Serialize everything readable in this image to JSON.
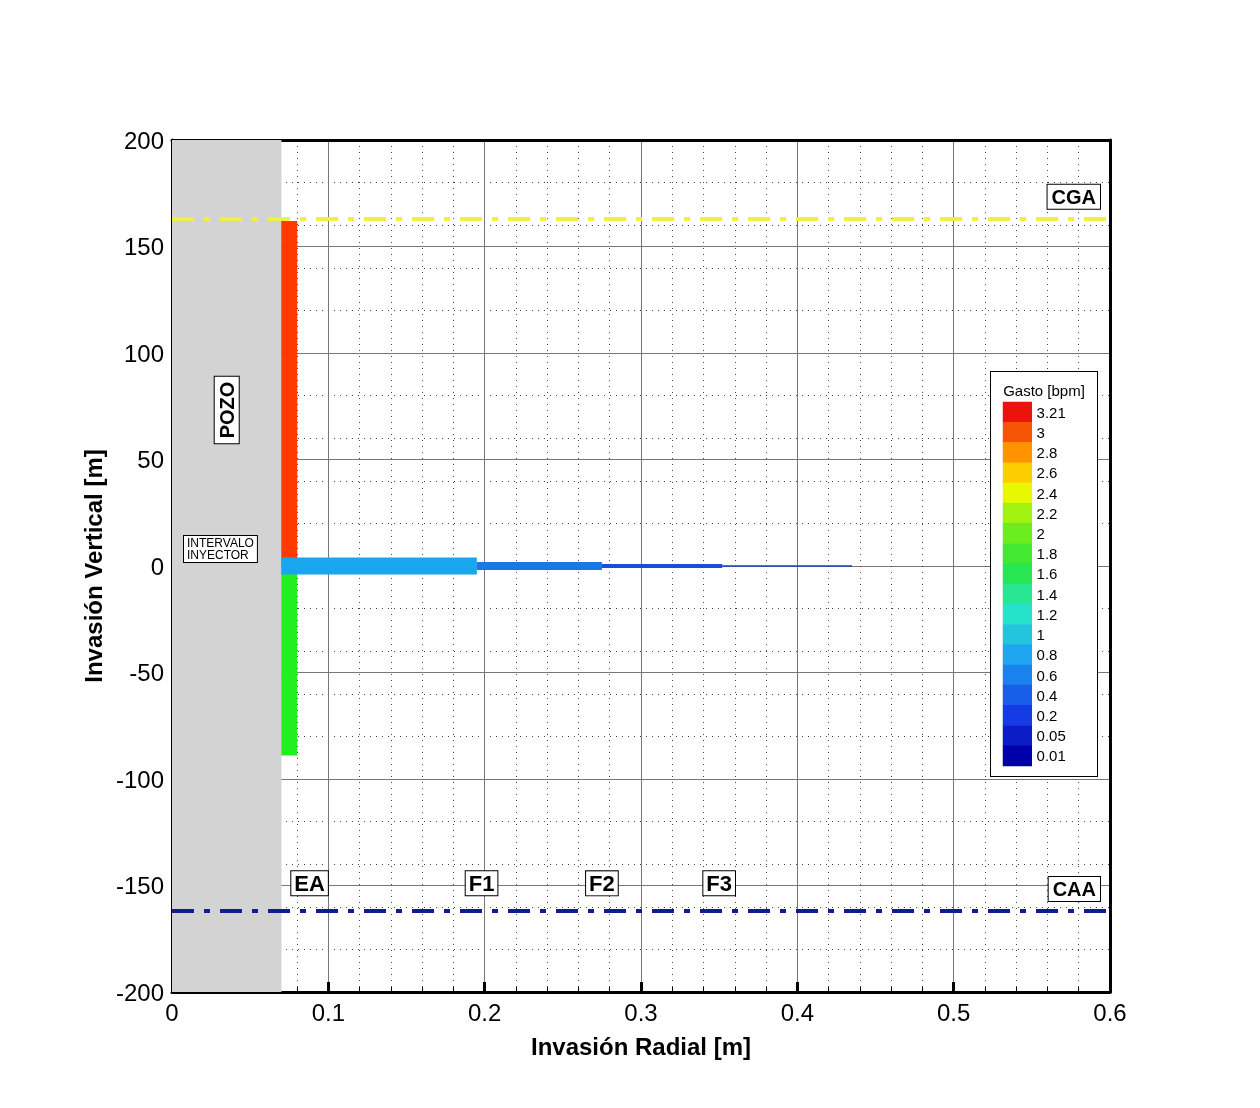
{
  "chart_data": [
    {
      "type": "line",
      "xlabel": "Invasión Radial [m]",
      "ylabel": "Invasión Vertical [m]",
      "xlim": [
        0,
        0.6
      ],
      "xticks": [
        0,
        0.1,
        0.2,
        0.3,
        0.4,
        0.5,
        0.6
      ],
      "ylim": [
        -200,
        200
      ],
      "yticks": [
        -200,
        -150,
        -100,
        -50,
        0,
        50,
        100,
        150,
        200
      ],
      "grid": true,
      "marker": "none",
      "line_style": "solid",
      "series": [
        {
          "color": "#ff3a00",
          "x": [
            0.075,
            0.075
          ],
          "values": [
            0,
            162
          ]
        },
        {
          "color": "#22ee22",
          "x": [
            0.075,
            0.075
          ],
          "values": [
            0,
            -89
          ]
        },
        {
          "color": "#1aa6ee",
          "x": [
            0.07,
            0.195
          ],
          "values": [
            0,
            0
          ]
        },
        {
          "color": "#1a78e6",
          "x": [
            0.195,
            0.275
          ],
          "values": [
            0,
            0
          ]
        },
        {
          "color": "#1a4ed6",
          "x": [
            0.275,
            0.352
          ],
          "values": [
            0,
            0
          ]
        },
        {
          "color": "#1a3cc0",
          "x": [
            0.352,
            0.435
          ],
          "values": [
            0,
            0
          ]
        }
      ],
      "bands": [
        {
          "axis": "x",
          "from": 0,
          "to": 0.07,
          "label": "POZO",
          "color": "#d3d3d3"
        }
      ],
      "ref_lines": [
        {
          "axis": "y",
          "value": 163,
          "label": "CGA",
          "color": "#f0f040",
          "line_style": "dashdot"
        },
        {
          "axis": "y",
          "value": -162,
          "label": "CAA",
          "color": "#101e8c",
          "line_style": "dashdot"
        }
      ],
      "annotations": [
        "INTERVALO\nINYECTOR",
        {
          "text": "EA",
          "x": 0.088,
          "y": -149
        },
        {
          "text": "F1",
          "x": 0.198,
          "y": -149
        },
        {
          "text": "F2",
          "x": 0.275,
          "y": -149
        },
        {
          "text": "F3",
          "x": 0.35,
          "y": -149
        }
      ]
    },
    {
      "type": "heatmap",
      "title": "Gasto [bpm]",
      "categories": [
        null
      ],
      "y_categories": [
        null,
        null,
        null,
        null,
        null,
        null,
        null,
        null,
        null,
        null,
        null,
        null,
        null,
        null,
        null,
        null,
        null,
        null
      ],
      "data_labels": true,
      "cells": [
        [
          3.21
        ],
        [
          3
        ],
        [
          2.8
        ],
        [
          2.6
        ],
        [
          2.4
        ],
        [
          2.2
        ],
        [
          2
        ],
        [
          1.8
        ],
        [
          1.6
        ],
        [
          1.4
        ],
        [
          1.2
        ],
        [
          1
        ],
        [
          0.8
        ],
        [
          0.6
        ],
        [
          0.4
        ],
        [
          0.2
        ],
        [
          0.05
        ],
        [
          0.01
        ]
      ]
    }
  ]
}
